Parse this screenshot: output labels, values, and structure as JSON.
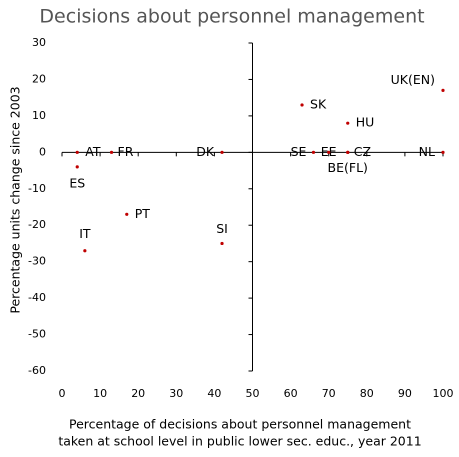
{
  "chart_data": {
    "type": "scatter",
    "title": "Decisions about personnel management",
    "xlabel": [
      "Percentage of decisions about personnel management",
      "taken at school level in public lower sec. educ., year 2011"
    ],
    "ylabel": "Percentage units change since 2003",
    "xlim": [
      0,
      100
    ],
    "ylim": [
      -60,
      30
    ],
    "xticks": [
      0,
      10,
      20,
      30,
      40,
      50,
      60,
      70,
      80,
      90,
      100
    ],
    "yticks": [
      -60,
      -50,
      -40,
      -30,
      -20,
      -10,
      0,
      10,
      20,
      30
    ],
    "color": "#c00000",
    "series": [
      {
        "names": [
          "AT",
          "ES",
          "FR",
          "DK",
          "PT",
          "IT",
          "SI",
          "SK",
          "UK(EN)",
          "HU",
          "SE",
          "EE",
          "CZ",
          "BE(FL)",
          "NL"
        ],
        "x": [
          4,
          4,
          13,
          42,
          17,
          6,
          42,
          63,
          100,
          75,
          66,
          70,
          75,
          75,
          100
        ],
        "values": [
          0,
          -4,
          0,
          0,
          -17,
          -27,
          -25,
          13,
          17,
          8,
          0,
          0,
          0,
          0,
          0
        ]
      }
    ]
  }
}
